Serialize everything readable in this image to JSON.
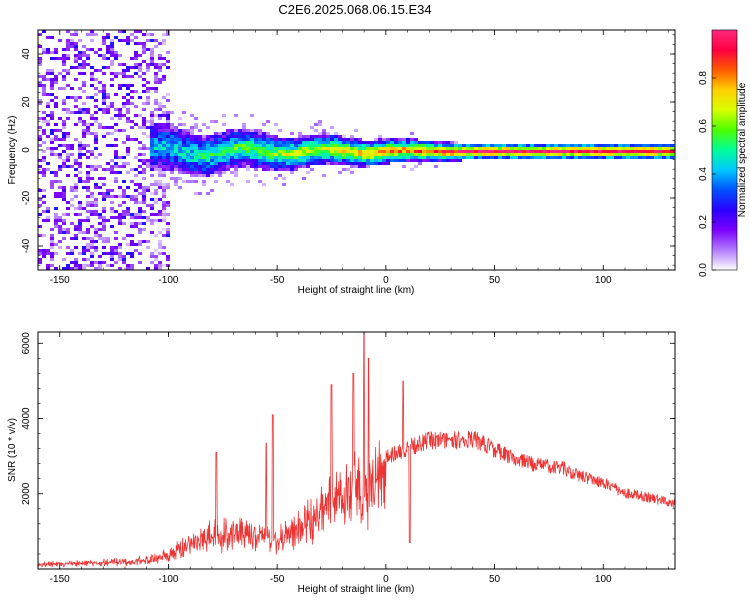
{
  "title": "C2E6.2025.068.06.15.E34",
  "chart_data": [
    {
      "type": "heatmap",
      "xlabel": "Height of straight line (km)",
      "ylabel": "Frequency (Hz)",
      "xlim": [
        -160,
        133
      ],
      "ylim": [
        -50,
        50
      ],
      "xticks": [
        -150,
        -100,
        -50,
        0,
        50,
        100
      ],
      "yticks": [
        -40,
        -20,
        0,
        20,
        40
      ],
      "colorbar": {
        "label": "Normalized spectral amplitude",
        "range": [
          0,
          1
        ],
        "ticks": [
          0.0,
          0.2,
          0.4,
          0.6,
          0.8
        ],
        "tick_labels": [
          "0.0",
          "0.2",
          "0.4",
          "0.6",
          "0.8"
        ],
        "colors": [
          "#ffffff",
          "#b27cff",
          "#7a00ff",
          "#2a00ff",
          "#0050ff",
          "#00c8ff",
          "#00ff9a",
          "#4cff00",
          "#d8ff00",
          "#ffd000",
          "#ff5a00",
          "#ff0040",
          "#ff2a80"
        ]
      },
      "features": {
        "scatter_region_x": [
          -160,
          -100
        ],
        "ridge_center_hz": 0,
        "ridge_onset_x": -110
      }
    },
    {
      "type": "line",
      "xlabel": "Height of straight line (km)",
      "ylabel": "SNR (10 * v/v)",
      "xlim": [
        -160,
        133
      ],
      "ylim": [
        0,
        6300
      ],
      "xticks": [
        -150,
        -100,
        -50,
        0,
        50,
        100
      ],
      "yticks": [
        2000,
        4000,
        6000
      ],
      "color": "#ee3333",
      "envelope": {
        "x": [
          -160,
          -140,
          -120,
          -110,
          -100,
          -90,
          -80,
          -70,
          -60,
          -50,
          -40,
          -30,
          -20,
          -10,
          0,
          10,
          20,
          30,
          40,
          50,
          60,
          70,
          80,
          90,
          100,
          110,
          120,
          133
        ],
        "y": [
          150,
          200,
          250,
          300,
          450,
          850,
          1050,
          1150,
          1050,
          1000,
          1350,
          1800,
          2300,
          2600,
          3150,
          3450,
          3650,
          3650,
          3700,
          3400,
          3100,
          2950,
          2900,
          2650,
          2450,
          2150,
          2050,
          1850
        ]
      },
      "spikes": [
        {
          "x": -78,
          "y": 3100
        },
        {
          "x": -55,
          "y": 3350
        },
        {
          "x": -52,
          "y": 4100
        },
        {
          "x": -25,
          "y": 4900
        },
        {
          "x": -15,
          "y": 5200
        },
        {
          "x": -10,
          "y": 6300
        },
        {
          "x": -8,
          "y": 5600
        },
        {
          "x": 8,
          "y": 5000
        },
        {
          "x": 11,
          "y": 700
        }
      ]
    }
  ]
}
